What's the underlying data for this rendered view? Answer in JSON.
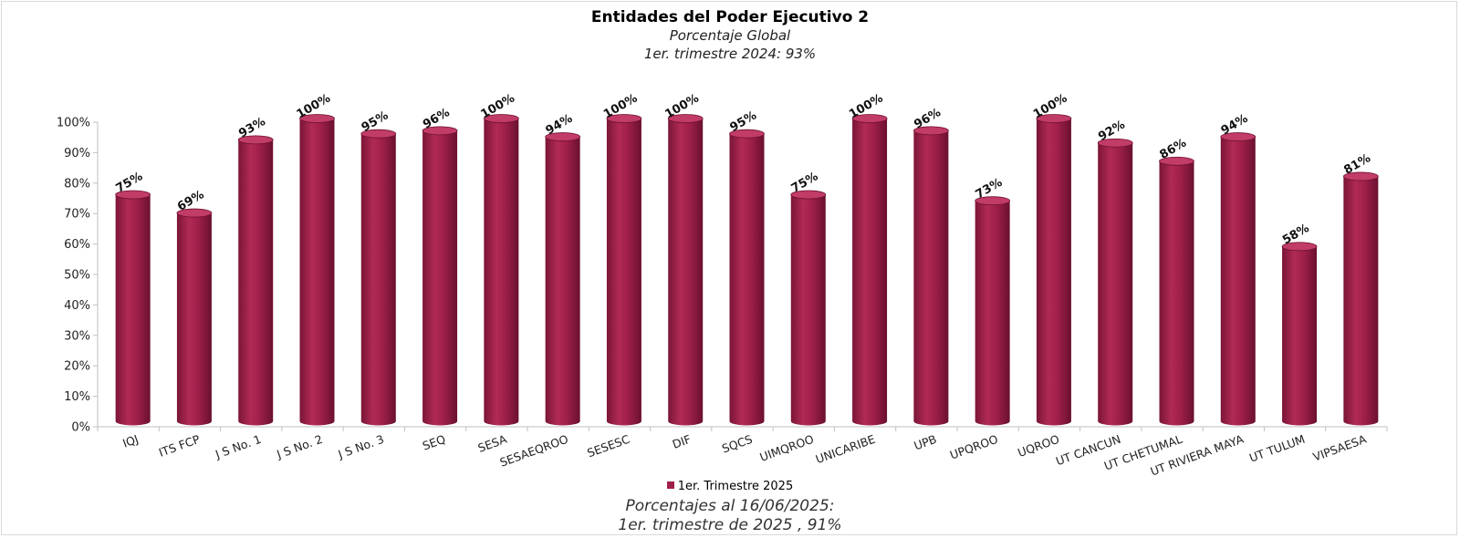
{
  "colors": {
    "bar": "#a0204a",
    "bar_dark": "#6e1131",
    "bar_light": "#c13c66",
    "axis": "#bfbfbf"
  },
  "header": {
    "title": "Entidades del Poder Ejecutivo 2",
    "subtitle": "Porcentaje Global",
    "subtitle2": "1er. trimestre 2024: 93%"
  },
  "footer": {
    "line1": "Porcentajes al 16/06/2025:",
    "line2": "1er. trimestre de 2025 , 91%"
  },
  "chart_data": {
    "type": "bar",
    "title": "Entidades del Poder Ejecutivo 2",
    "xlabel": "",
    "ylabel": "",
    "ylim": [
      0,
      100
    ],
    "yticks": [
      "0%",
      "10%",
      "20%",
      "30%",
      "40%",
      "50%",
      "60%",
      "70%",
      "80%",
      "90%",
      "100%"
    ],
    "legend": "bottom-center",
    "grid": false,
    "categories": [
      "IQJ",
      "ITS FCP",
      "J S No. 1",
      "J S No. 2",
      "J S No. 3",
      "SEQ",
      "SESA",
      "SESAEQROO",
      "SESESC",
      "DIF",
      "SQCS",
      "UIMQROO",
      "UNICARIBE",
      "UPB",
      "UPQROO",
      "UQROO",
      "UT CANCUN",
      "UT CHETUMAL",
      "UT RIVIERA MAYA",
      "UT TULUM",
      "VIPSAESA"
    ],
    "series": [
      {
        "name": "1er. Trimestre 2025",
        "values": [
          75,
          69,
          93,
          100,
          95,
          96,
          100,
          94,
          100,
          100,
          95,
          75,
          100,
          96,
          73,
          100,
          92,
          86,
          94,
          58,
          81
        ],
        "labels": [
          "75%",
          "69%",
          "93%",
          "100%",
          "95%",
          "96%",
          "100%",
          "94%",
          "100%",
          "100%",
          "95%",
          "75%",
          "100%",
          "96%",
          "73%",
          "100%",
          "92%",
          "86%",
          "94%",
          "58%",
          "81%"
        ]
      }
    ]
  }
}
